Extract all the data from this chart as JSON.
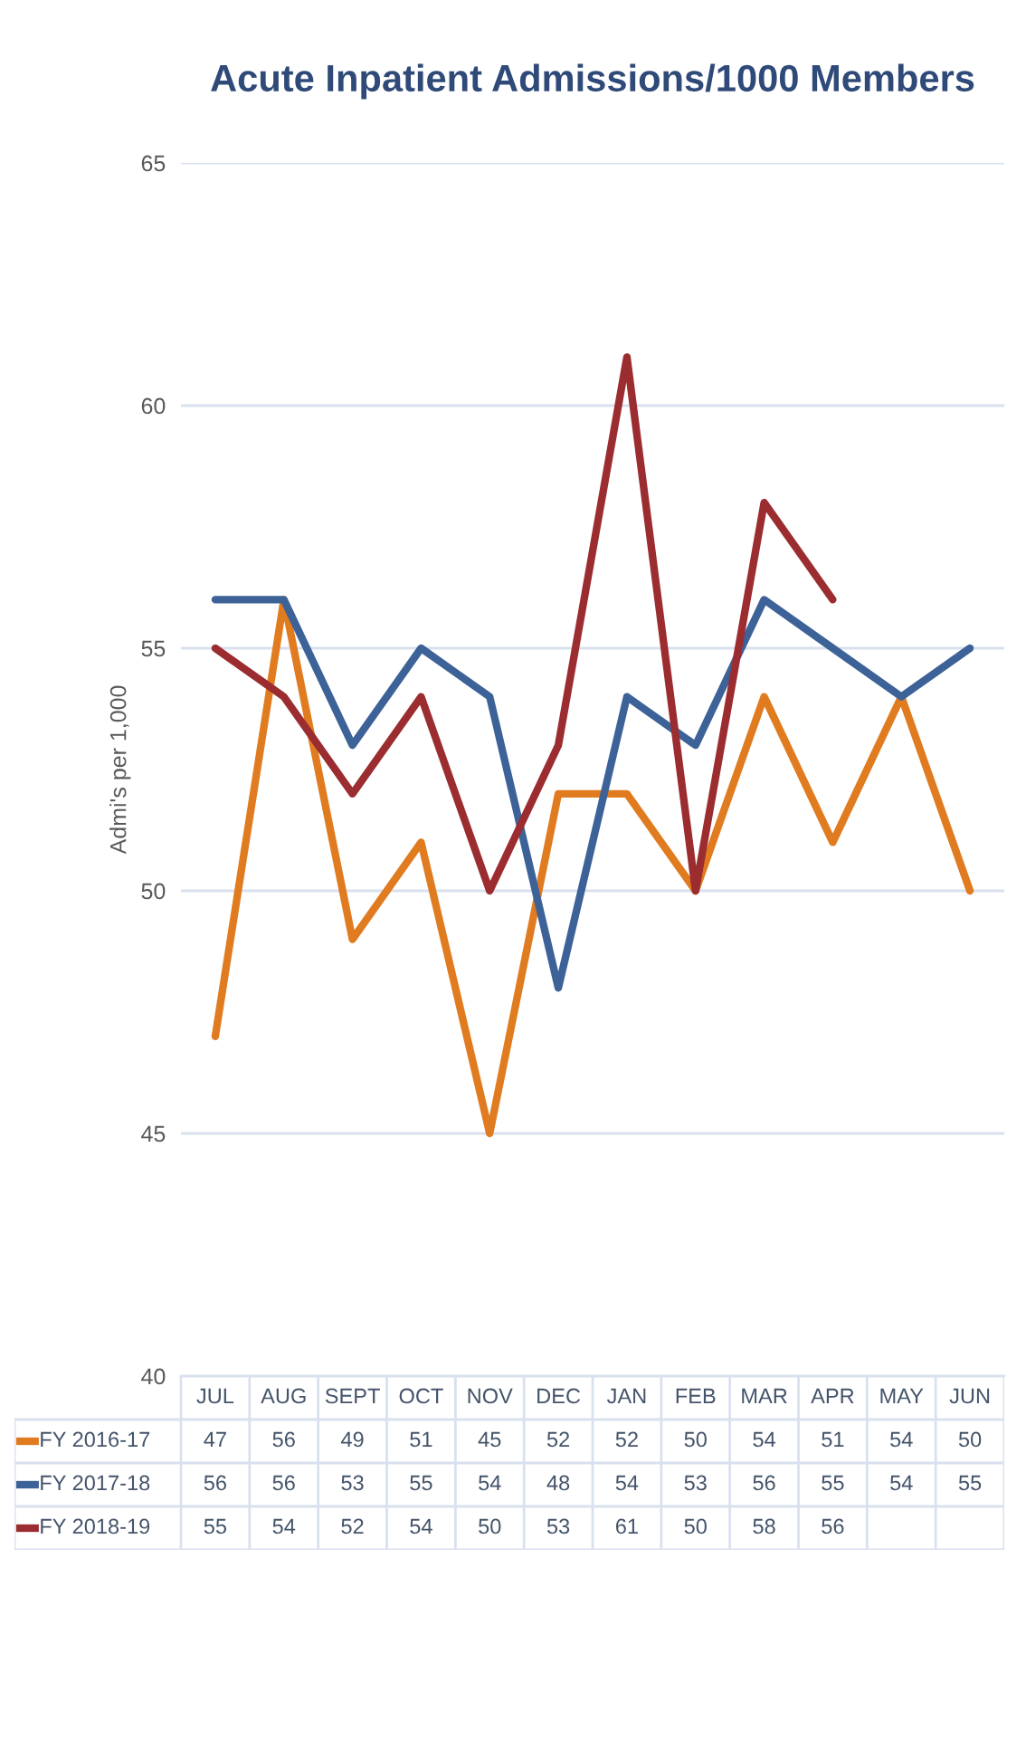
{
  "chart_data": {
    "type": "line",
    "title": "Acute Inpatient Admissions/1000 Members",
    "ylabel": "Admi's per 1,000",
    "categories": [
      "JUL",
      "AUG",
      "SEPT",
      "OCT",
      "NOV",
      "DEC",
      "JAN",
      "FEB",
      "MAR",
      "APR",
      "MAY",
      "JUN"
    ],
    "series": [
      {
        "name": "FY 2016-17",
        "color": "#e07b20",
        "values": [
          47,
          56,
          49,
          51,
          45,
          52,
          52,
          50,
          54,
          51,
          54,
          50
        ]
      },
      {
        "name": "FY 2017-18",
        "color": "#3d6298",
        "values": [
          56,
          56,
          53,
          55,
          54,
          48,
          54,
          53,
          56,
          55,
          54,
          55
        ]
      },
      {
        "name": "FY 2018-19",
        "color": "#9b2d30",
        "values": [
          55,
          54,
          52,
          54,
          50,
          53,
          61,
          50,
          58,
          56,
          null,
          null
        ]
      }
    ],
    "ylim": [
      40,
      65
    ],
    "yticks": [
      40,
      45,
      50,
      55,
      60,
      65
    ],
    "grid": "y",
    "legend": "bottom left",
    "data_labels": true
  }
}
